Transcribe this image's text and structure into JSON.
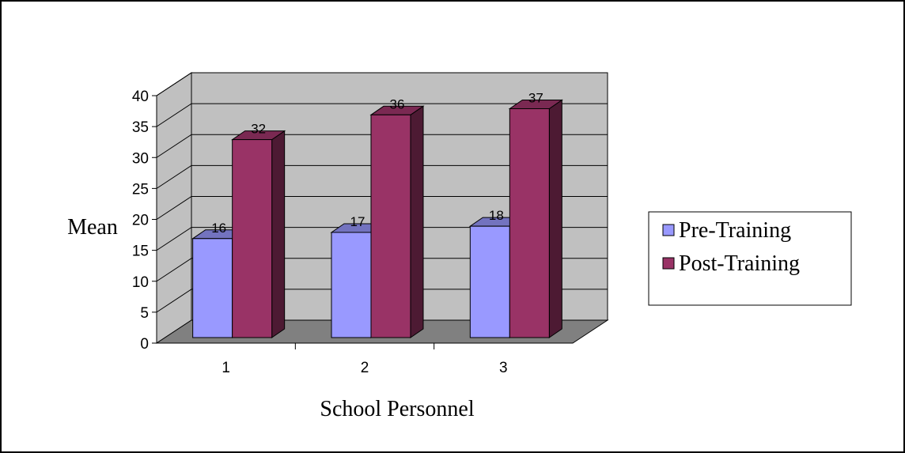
{
  "chart_data": {
    "type": "bar",
    "title": "",
    "xlabel": "School Personnel",
    "ylabel": "Mean",
    "categories": [
      "1",
      "2",
      "3"
    ],
    "series": [
      {
        "name": "Pre-Training",
        "values": [
          16,
          17,
          18
        ],
        "color": "#9999ff"
      },
      {
        "name": "Post-Training",
        "values": [
          32,
          36,
          37
        ],
        "color": "#993366"
      }
    ],
    "ylim": [
      0,
      40
    ],
    "yticks": [
      "0",
      "5",
      "10",
      "15",
      "20",
      "25",
      "30",
      "35",
      "40"
    ],
    "grid": true,
    "legend": "right",
    "wall_color": "#c0c0c0",
    "floor_color": "#808080"
  }
}
